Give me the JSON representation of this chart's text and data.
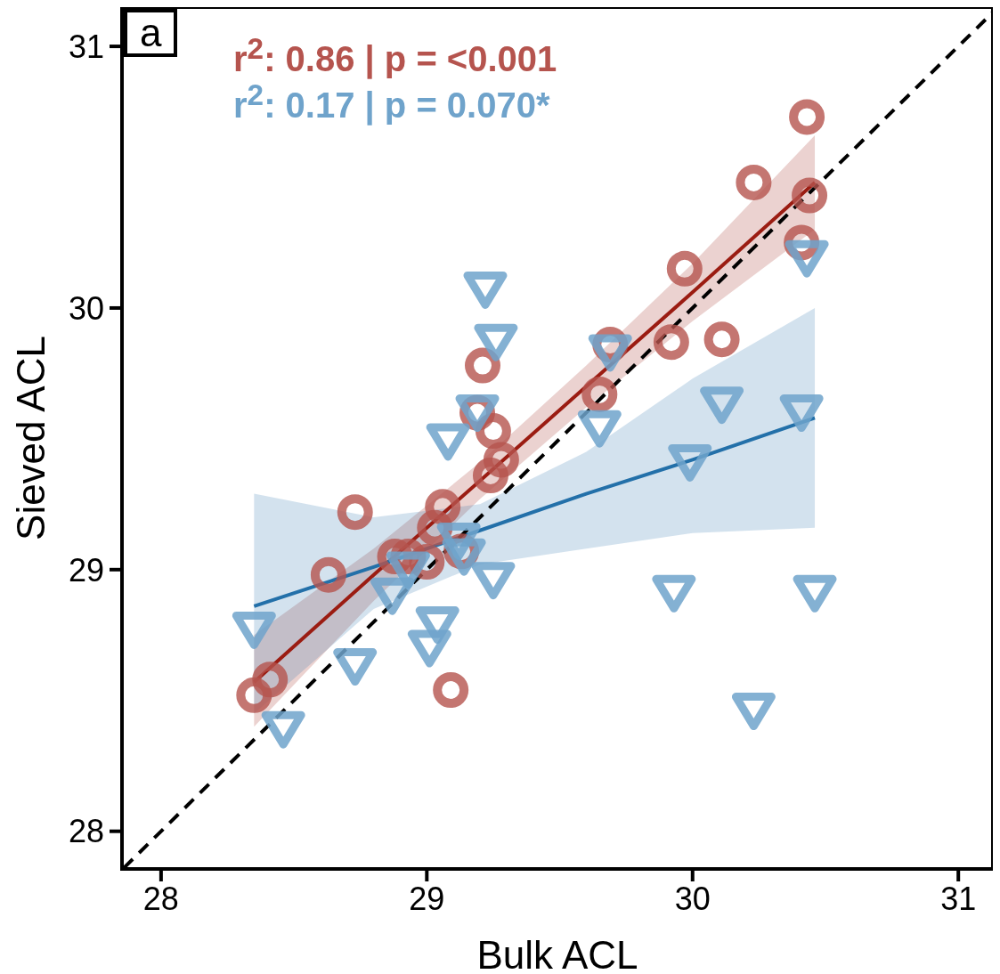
{
  "chart_data": {
    "type": "scatter",
    "xlabel": "Bulk ACL",
    "ylabel": "Sieved ACL",
    "xlim": [
      27.853,
      31.13
    ],
    "ylim": [
      27.856,
      31.15
    ],
    "xticks": [
      28,
      29,
      30,
      31
    ],
    "yticks": [
      28,
      29,
      30,
      31
    ],
    "annotations": [
      "a",
      "r$^{2}$: 0.86 | p = <0.001",
      "r$^{2}$: 0.17 | p = 0.070*"
    ],
    "series": [
      {
        "color": "#b5544e",
        "marker": "circle",
        "x": [
          30.43,
          30.23,
          30.44,
          30.41,
          29.97,
          29.92,
          30.11,
          29.69,
          29.65,
          29.21,
          29.19,
          29.25,
          29.28,
          29.24,
          29.06,
          29.03,
          29.13,
          29.0,
          28.93,
          28.88,
          28.73,
          28.63,
          28.41,
          28.35,
          29.09
        ],
        "values": [
          30.73,
          30.48,
          30.43,
          30.25,
          30.15,
          29.87,
          29.88,
          29.86,
          29.67,
          29.78,
          29.6,
          29.53,
          29.42,
          29.36,
          29.24,
          29.16,
          29.07,
          29.03,
          29.05,
          29.05,
          29.22,
          28.98,
          28.58,
          28.52,
          28.54
        ]
      },
      {
        "color": "#6fa3cb",
        "marker": "triangle",
        "x": [
          29.22,
          29.26,
          30.43,
          29.69,
          29.19,
          29.65,
          29.08,
          30.11,
          30.41,
          29.99,
          29.12,
          29.14,
          28.93,
          28.87,
          29.25,
          29.93,
          30.46,
          29.04,
          29.01,
          28.35,
          28.73,
          28.46,
          30.23
        ],
        "values": [
          30.08,
          29.88,
          30.2,
          29.84,
          29.61,
          29.55,
          29.5,
          29.64,
          29.61,
          29.42,
          29.12,
          29.06,
          29.01,
          28.91,
          28.97,
          28.92,
          28.92,
          28.8,
          28.71,
          28.78,
          28.64,
          28.4,
          28.47
        ]
      },
      {
        "type": "line",
        "color": "#9b1c12",
        "marker": "none",
        "line_style": "solid",
        "x": [
          28.35,
          28.8,
          29.2,
          29.6,
          30.0,
          30.46
        ],
        "values": [
          28.57,
          28.98,
          29.34,
          29.7,
          30.06,
          30.48
        ],
        "lower": [
          28.4,
          28.88,
          29.27,
          29.62,
          29.95,
          30.3
        ],
        "upper": [
          28.75,
          29.08,
          29.41,
          29.78,
          30.17,
          30.66
        ]
      },
      {
        "type": "line",
        "color": "#2370a9",
        "marker": "none",
        "line_style": "solid",
        "x": [
          28.35,
          28.8,
          29.2,
          29.6,
          30.0,
          30.46
        ],
        "values": [
          28.86,
          29.01,
          29.15,
          29.29,
          29.42,
          29.58
        ],
        "lower": [
          28.45,
          28.85,
          29.02,
          29.08,
          29.14,
          29.16
        ],
        "upper": [
          29.29,
          29.2,
          29.25,
          29.45,
          29.73,
          30.0
        ]
      },
      {
        "type": "line",
        "color": "#000000",
        "marker": "none",
        "line_style": "dashed",
        "x": [
          27.86,
          31.13
        ],
        "values": [
          27.86,
          31.13
        ]
      }
    ]
  }
}
